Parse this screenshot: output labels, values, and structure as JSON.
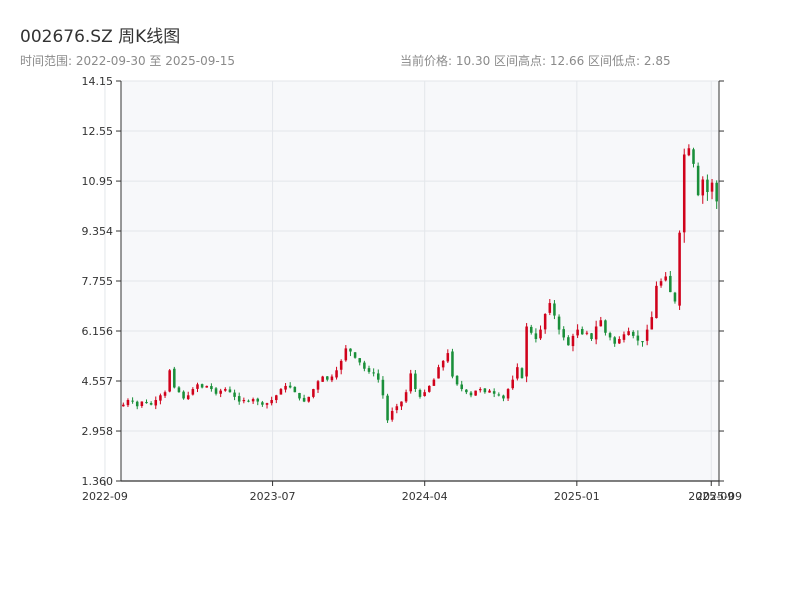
{
  "header": {
    "title": "002676.SZ 周K线图",
    "date_range": "时间范围: 2022-09-30 至 2025-09-15",
    "stats": "当前价格: 10.30   区间高点: 12.66   区间低点: 2.85"
  },
  "colors": {
    "up": "#d0021b",
    "down": "#1a8f3a",
    "plot_bg": "#f7f8fa",
    "grid": "#e3e6ea",
    "axis": "#333333"
  },
  "chart_data": {
    "type": "candlestick",
    "title": "002676.SZ 周K线图",
    "x_range": [
      "2022-09-30",
      "2025-09-15"
    ],
    "ylim": [
      1.36,
      14.15
    ],
    "y_ticks": [
      "14.15",
      "12.55",
      "10.95",
      "9.354",
      "7.755",
      "6.156",
      "4.557",
      "2.958",
      "1.360"
    ],
    "x_ticks": [
      {
        "date": "2022-09-01",
        "label": "2022-09"
      },
      {
        "date": "2023-07-01",
        "label": "2023-07"
      },
      {
        "date": "2024-04-01",
        "label": "2024-04"
      },
      {
        "date": "2025-01-01",
        "label": "2025-01"
      },
      {
        "date": "2025-09-01",
        "label": "2025-09"
      },
      {
        "date": "2025-09-15",
        "label": "2025-09"
      }
    ],
    "grid": true,
    "up_color": "red",
    "down_color": "green",
    "current_price": 10.3,
    "high": 12.66,
    "low": 2.85,
    "closes": [
      3.8,
      3.95,
      3.9,
      3.75,
      3.9,
      3.85,
      3.8,
      3.95,
      4.1,
      4.2,
      4.9,
      4.35,
      4.2,
      4.0,
      4.1,
      4.3,
      4.45,
      4.35,
      4.4,
      4.3,
      4.15,
      4.25,
      4.3,
      4.2,
      4.05,
      3.9,
      3.95,
      3.92,
      3.98,
      3.9,
      3.8,
      3.85,
      3.95,
      4.1,
      4.3,
      4.4,
      4.35,
      4.2,
      4.0,
      3.9,
      4.05,
      4.3,
      4.55,
      4.7,
      4.6,
      4.7,
      4.9,
      5.2,
      5.6,
      5.5,
      5.3,
      5.15,
      4.95,
      4.85,
      4.8,
      4.6,
      4.1,
      3.3,
      3.6,
      3.75,
      3.9,
      4.2,
      4.8,
      4.3,
      4.05,
      4.2,
      4.4,
      4.6,
      5.0,
      5.2,
      5.45,
      4.7,
      4.45,
      4.3,
      4.2,
      4.1,
      4.25,
      4.3,
      4.2,
      4.25,
      4.15,
      4.1,
      4.0,
      4.3,
      4.6,
      5.0,
      4.65,
      6.3,
      6.1,
      5.9,
      6.2,
      6.7,
      7.05,
      6.65,
      6.2,
      5.95,
      5.7,
      6.0,
      6.2,
      6.05,
      6.1,
      5.9,
      6.3,
      6.5,
      6.1,
      5.95,
      5.75,
      5.9,
      6.05,
      6.15,
      6.0,
      5.85,
      5.8,
      6.2,
      6.6,
      7.6,
      7.75,
      7.9,
      7.4,
      7.1,
      9.3,
      11.8,
      12.0,
      11.5,
      10.5,
      11.0,
      10.6,
      10.9,
      10.3
    ]
  }
}
